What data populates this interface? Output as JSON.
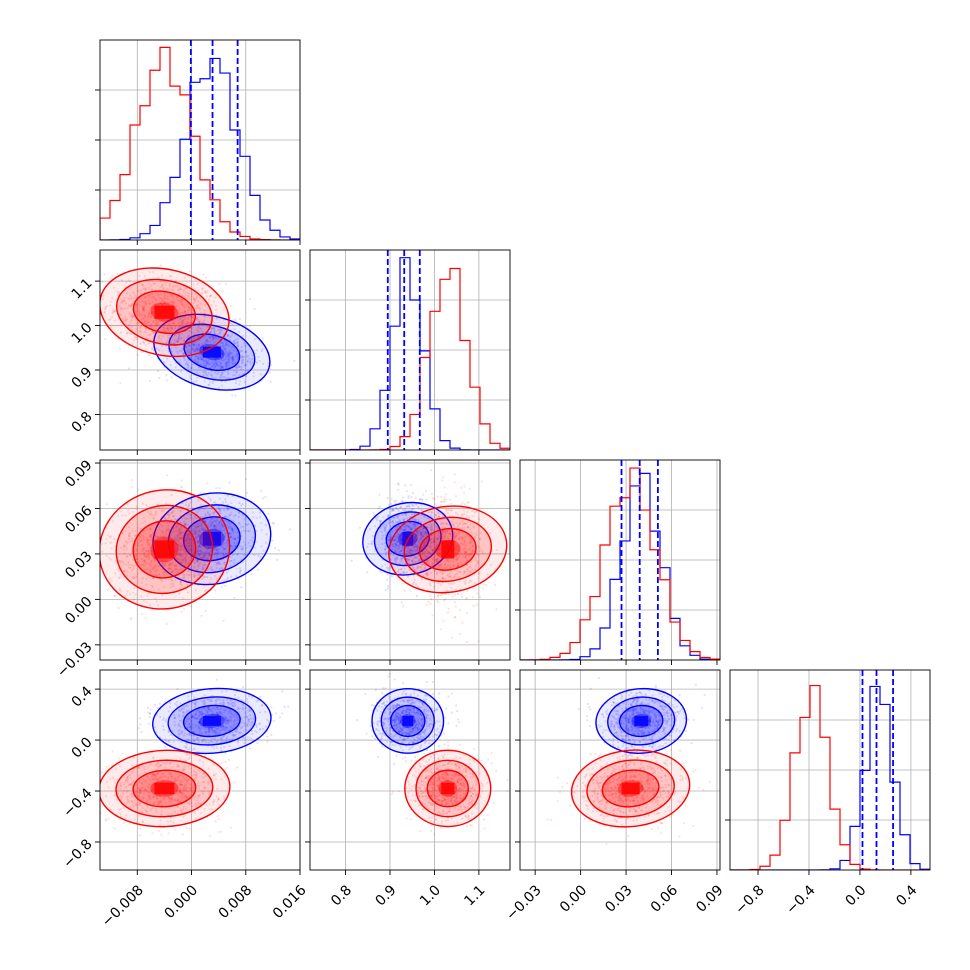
{
  "chart_data": {
    "type": "corner",
    "grid": true,
    "colors": {
      "series_a": "#0000ff",
      "series_b": "#ff0000"
    },
    "series": [
      {
        "color": "#0000ff",
        "means": [
          0.003,
          0.94,
          0.04,
          0.15
        ],
        "sds": [
          0.0038,
          0.035,
          0.013,
          0.11
        ],
        "rho": [
          [
            1,
            -0.3,
            0.1,
            0.1
          ],
          [
            -0.3,
            1,
            -0.1,
            0.0
          ],
          [
            0.1,
            -0.1,
            1,
            0.05
          ],
          [
            0.1,
            0.0,
            0.05,
            1
          ]
        ]
      },
      {
        "color": "#ff0000",
        "means": [
          -0.004,
          1.03,
          0.033,
          -0.38
        ],
        "sds": [
          0.0042,
          0.042,
          0.017,
          0.13
        ],
        "rho": [
          [
            1,
            -0.2,
            0.05,
            0.05
          ],
          [
            -0.2,
            1,
            -0.1,
            0.0
          ],
          [
            0.05,
            -0.1,
            1,
            0.1
          ],
          [
            0.05,
            0.0,
            0.1,
            1
          ]
        ]
      }
    ],
    "params": [
      {
        "range": [
          -0.0135,
          0.016
        ],
        "ticks": [
          -0.008,
          0.0,
          0.008,
          0.016
        ],
        "tick_labels": [
          "−0.008",
          "0.000",
          "0.008",
          "0.016"
        ]
      },
      {
        "range": [
          0.72,
          1.17
        ],
        "ticks": [
          0.8,
          0.9,
          1.0,
          1.1
        ],
        "tick_labels": [
          "0.8",
          "0.9",
          "1.0",
          "1.1"
        ]
      },
      {
        "range": [
          -0.04,
          0.092
        ],
        "ticks": [
          -0.03,
          0.0,
          0.03,
          0.06,
          0.09
        ],
        "tick_labels": [
          "−0.03",
          "0.00",
          "0.03",
          "0.06",
          "0.09"
        ]
      },
      {
        "range": [
          -1.02,
          0.55
        ],
        "ticks": [
          -0.8,
          -0.4,
          0.0,
          0.4
        ],
        "tick_labels": [
          "−0.8",
          "−0.4",
          "0.0",
          "0.4"
        ]
      }
    ],
    "quantile_lines": [
      [
        -0.0001,
        0.0031,
        0.0068
      ],
      [
        0.895,
        0.932,
        0.967
      ],
      [
        0.027,
        0.039,
        0.051
      ],
      [
        0.02,
        0.13,
        0.26
      ]
    ]
  }
}
